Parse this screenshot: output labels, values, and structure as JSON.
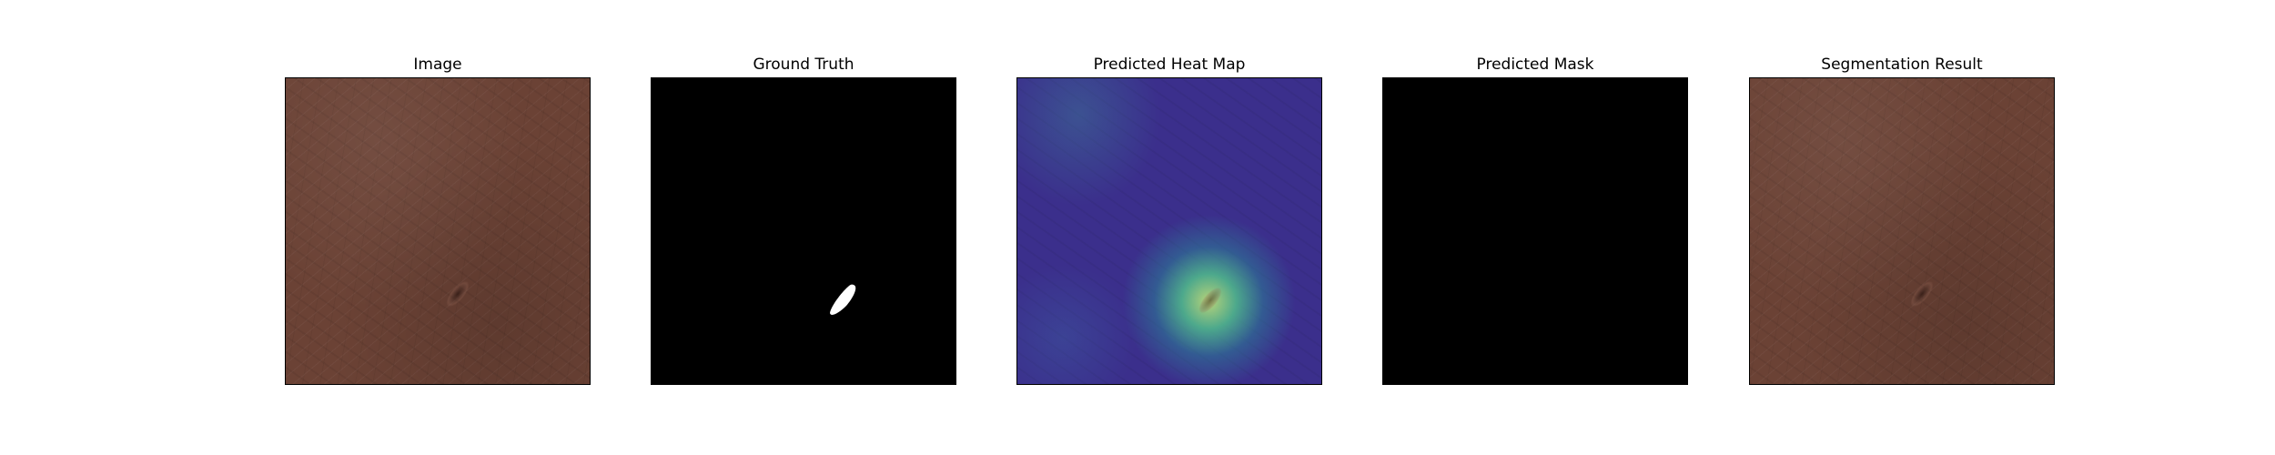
{
  "panels": [
    {
      "title": "Image"
    },
    {
      "title": "Ground Truth"
    },
    {
      "title": "Predicted Heat Map"
    },
    {
      "title": "Predicted Mask"
    },
    {
      "title": "Segmentation Result"
    }
  ],
  "colors": {
    "leather": "#6b4235",
    "heatmap_base": "#3b2f8c",
    "heatmap_hot": "#bedc78",
    "mask_background": "#000000",
    "mask_foreground": "#ffffff"
  }
}
